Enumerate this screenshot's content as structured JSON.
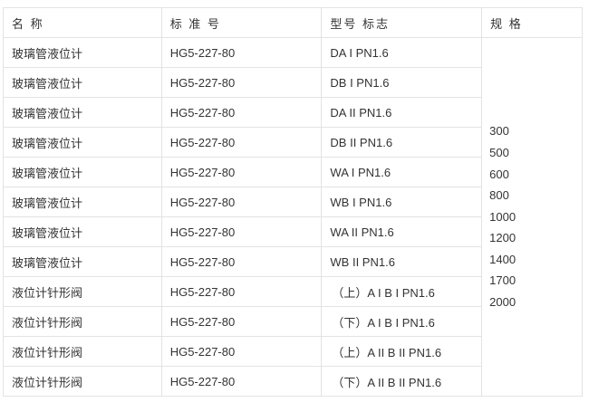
{
  "headers": [
    "名 称",
    "标 准 号",
    "型号 标志",
    "规 格"
  ],
  "rows": [
    [
      "玻璃管液位计",
      "HG5-227-80",
      "DA I PN1.6"
    ],
    [
      "玻璃管液位计",
      "HG5-227-80",
      "DB I PN1.6"
    ],
    [
      "玻璃管液位计",
      "HG5-227-80",
      "DA II PN1.6"
    ],
    [
      "玻璃管液位计",
      "HG5-227-80",
      "DB II PN1.6"
    ],
    [
      "玻璃管液位计",
      "HG5-227-80",
      "WA I PN1.6"
    ],
    [
      "玻璃管液位计",
      "HG5-227-80",
      "WB I PN1.6"
    ],
    [
      "玻璃管液位计",
      "HG5-227-80",
      "WA II PN1.6"
    ],
    [
      "玻璃管液位计",
      "HG5-227-80",
      "WB II PN1.6"
    ],
    [
      "液位计针形阀",
      "HG5-227-80",
      "（上）A I B I PN1.6"
    ],
    [
      "液位计针形阀",
      "HG5-227-80",
      "（下）A I B I PN1.6"
    ],
    [
      "液位计针形阀",
      "HG5-227-80",
      "（上）A II B II PN1.6"
    ],
    [
      "液位计针形阀",
      "HG5-227-80",
      "（下）A II B II PN1.6"
    ]
  ],
  "specs": [
    "300",
    "500",
    "600",
    "800",
    "1000",
    "1200",
    "1400",
    "1700",
    "2000"
  ]
}
